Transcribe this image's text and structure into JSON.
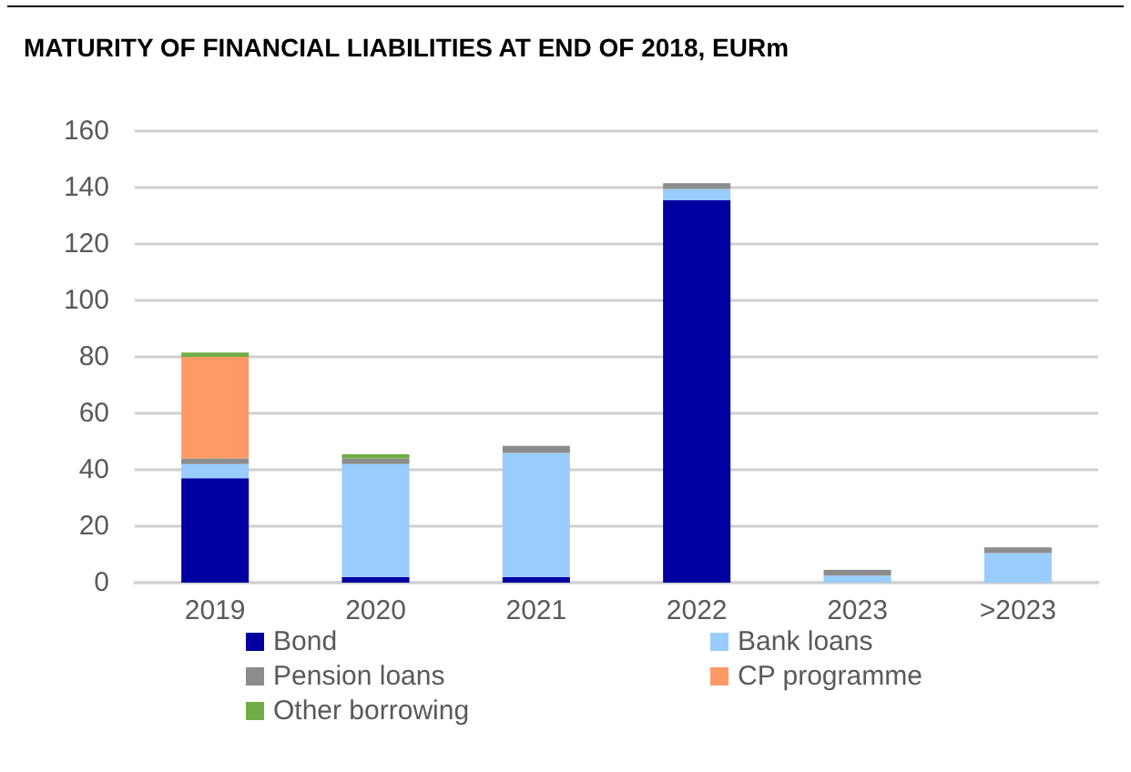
{
  "chart_data": {
    "type": "bar",
    "title": "MATURITY OF FINANCIAL LIABILITIES AT END OF 2018, EURm",
    "categories": [
      "2019",
      "2020",
      "2021",
      "2022",
      "2023",
      ">2023"
    ],
    "stacked": true,
    "series": [
      {
        "name": "Bond",
        "color": "#0000a0",
        "values": [
          37,
          2,
          2,
          135.5,
          0,
          0
        ]
      },
      {
        "name": "Bank loans",
        "color": "#99ccff",
        "values": [
          5,
          40,
          44,
          4,
          2.5,
          10.5
        ]
      },
      {
        "name": "Pension loans",
        "color": "#8c8c8c",
        "values": [
          2,
          2,
          2.5,
          2,
          2,
          2
        ]
      },
      {
        "name": "CP programme",
        "color": "#ff9966",
        "values": [
          36,
          0,
          0,
          0,
          0,
          0
        ]
      },
      {
        "name": "Other borrowing",
        "color": "#70ad47",
        "values": [
          1.5,
          1.5,
          0,
          0,
          0,
          0
        ]
      }
    ],
    "ylim": [
      0,
      160
    ],
    "yticks": [
      0,
      20,
      40,
      60,
      80,
      100,
      120,
      140,
      160
    ],
    "grid": "y",
    "legend": "bottom"
  }
}
